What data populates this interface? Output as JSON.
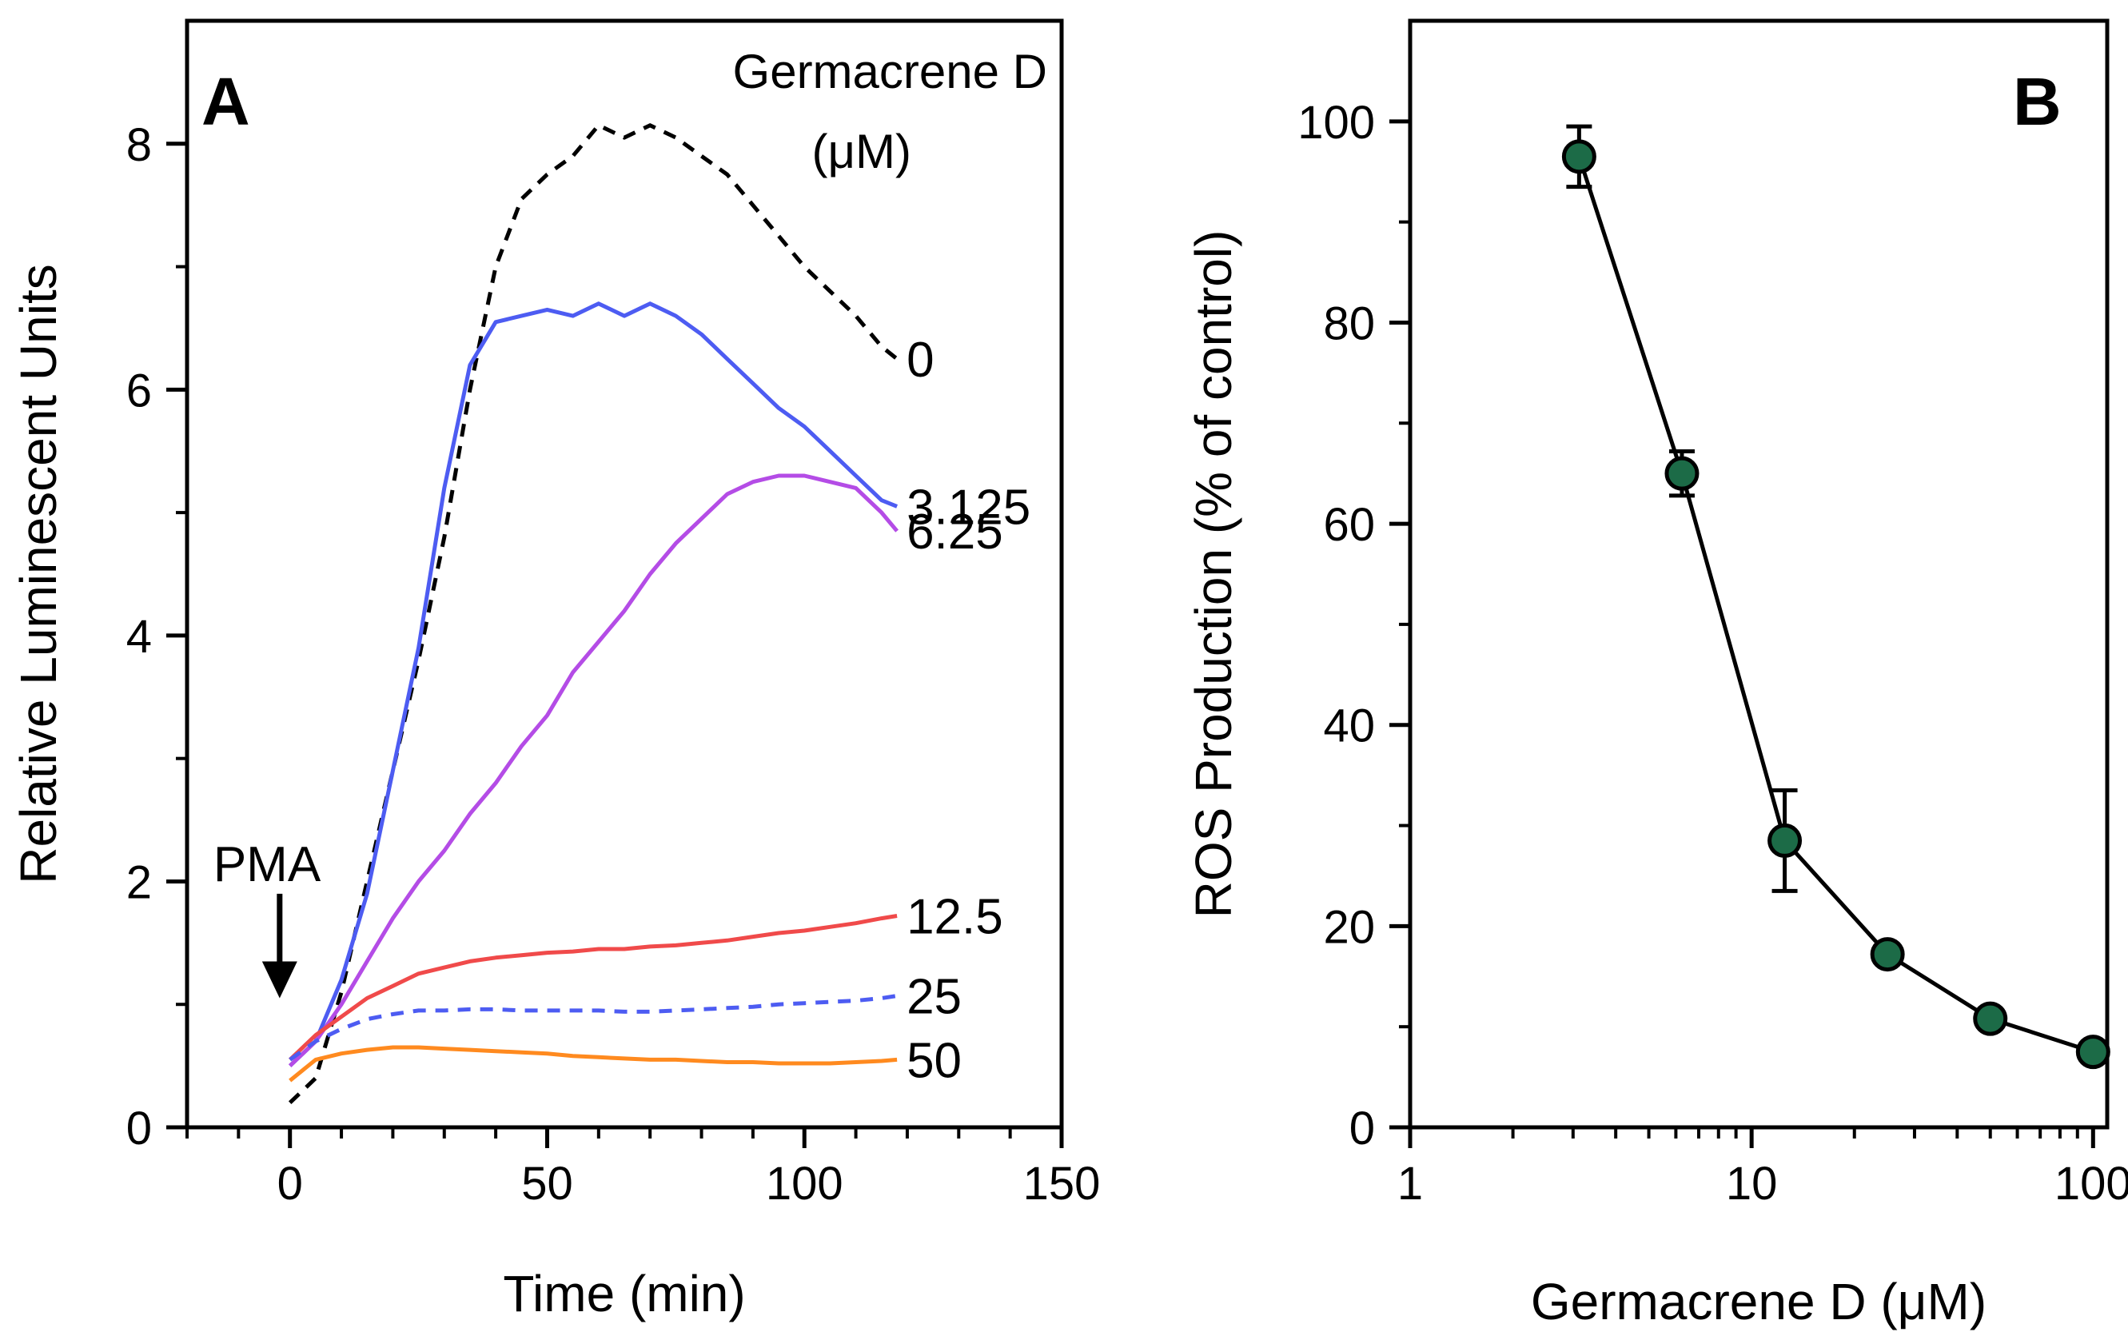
{
  "chart_data": [
    {
      "panel": "A",
      "type": "line",
      "xlabel": "Time (min)",
      "ylabel": "Relative Luminescent Units",
      "xlim": [
        -20,
        150
      ],
      "ylim": [
        0,
        9
      ],
      "x_ticks": [
        0,
        50,
        100,
        150
      ],
      "y_ticks": [
        0,
        2,
        4,
        6,
        8
      ],
      "x_minor_step": 10,
      "grid": false,
      "legend_title": [
        "Germacrene D",
        "(μM)"
      ],
      "annotation": {
        "text": "PMA",
        "x": -2,
        "arrow_from_y": 1.9,
        "arrow_to_y": 1.05
      },
      "series": [
        {
          "name": "0",
          "label": "0",
          "color": "#000000",
          "dashed": true,
          "x": [
            0,
            5,
            10,
            15,
            20,
            25,
            30,
            35,
            40,
            45,
            50,
            55,
            60,
            65,
            70,
            75,
            80,
            85,
            90,
            95,
            100,
            105,
            110,
            115,
            118
          ],
          "y": [
            0.2,
            0.4,
            1.1,
            2.0,
            2.9,
            3.8,
            4.8,
            6.0,
            7.0,
            7.55,
            7.75,
            7.9,
            8.15,
            8.05,
            8.15,
            8.05,
            7.9,
            7.75,
            7.5,
            7.25,
            7.0,
            6.8,
            6.6,
            6.35,
            6.25
          ]
        },
        {
          "name": "3.125",
          "label": "3.125",
          "color": "#4d5cf2",
          "dashed": false,
          "x": [
            0,
            5,
            10,
            15,
            20,
            25,
            30,
            35,
            40,
            45,
            50,
            55,
            60,
            65,
            70,
            75,
            80,
            85,
            90,
            95,
            100,
            105,
            110,
            115,
            118
          ],
          "y": [
            0.5,
            0.7,
            1.2,
            1.9,
            2.9,
            3.9,
            5.2,
            6.2,
            6.55,
            6.6,
            6.65,
            6.6,
            6.7,
            6.6,
            6.7,
            6.6,
            6.45,
            6.25,
            6.05,
            5.85,
            5.7,
            5.5,
            5.3,
            5.1,
            5.05
          ]
        },
        {
          "name": "6.25",
          "label": "6.25",
          "color": "#b44ce6",
          "dashed": false,
          "x": [
            0,
            5,
            10,
            15,
            20,
            25,
            30,
            35,
            40,
            45,
            50,
            55,
            60,
            65,
            70,
            75,
            80,
            85,
            90,
            95,
            100,
            105,
            110,
            115,
            118
          ],
          "y": [
            0.5,
            0.7,
            1.0,
            1.35,
            1.7,
            2.0,
            2.25,
            2.55,
            2.8,
            3.1,
            3.35,
            3.7,
            3.95,
            4.2,
            4.5,
            4.75,
            4.95,
            5.15,
            5.25,
            5.3,
            5.3,
            5.25,
            5.2,
            5.0,
            4.85
          ]
        },
        {
          "name": "12.5",
          "label": "12.5",
          "color": "#f04a4a",
          "dashed": false,
          "x": [
            0,
            5,
            10,
            15,
            20,
            25,
            30,
            35,
            40,
            45,
            50,
            55,
            60,
            65,
            70,
            75,
            80,
            85,
            90,
            95,
            100,
            105,
            110,
            115,
            118
          ],
          "y": [
            0.55,
            0.75,
            0.9,
            1.05,
            1.15,
            1.25,
            1.3,
            1.35,
            1.38,
            1.4,
            1.42,
            1.43,
            1.45,
            1.45,
            1.47,
            1.48,
            1.5,
            1.52,
            1.55,
            1.58,
            1.6,
            1.63,
            1.66,
            1.7,
            1.72
          ]
        },
        {
          "name": "25",
          "label": "25",
          "color": "#4d5cf2",
          "dashed": true,
          "x": [
            0,
            5,
            10,
            15,
            20,
            25,
            30,
            35,
            40,
            45,
            50,
            55,
            60,
            65,
            70,
            75,
            80,
            85,
            90,
            95,
            100,
            105,
            110,
            115,
            118
          ],
          "y": [
            0.55,
            0.7,
            0.8,
            0.88,
            0.92,
            0.95,
            0.95,
            0.96,
            0.96,
            0.95,
            0.95,
            0.95,
            0.95,
            0.94,
            0.94,
            0.95,
            0.96,
            0.97,
            0.98,
            1.0,
            1.01,
            1.02,
            1.03,
            1.05,
            1.07
          ]
        },
        {
          "name": "50",
          "label": "50",
          "color": "#ff8a1f",
          "dashed": false,
          "x": [
            0,
            5,
            10,
            15,
            20,
            25,
            30,
            35,
            40,
            45,
            50,
            55,
            60,
            65,
            70,
            75,
            80,
            85,
            90,
            95,
            100,
            105,
            110,
            115,
            118
          ],
          "y": [
            0.38,
            0.55,
            0.6,
            0.63,
            0.65,
            0.65,
            0.64,
            0.63,
            0.62,
            0.61,
            0.6,
            0.58,
            0.57,
            0.56,
            0.55,
            0.55,
            0.54,
            0.53,
            0.53,
            0.52,
            0.52,
            0.52,
            0.53,
            0.54,
            0.55
          ]
        }
      ]
    },
    {
      "panel": "B",
      "type": "line",
      "x_scale": "log",
      "xlabel": "Germacrene D (μM)",
      "ylabel": "ROS Production (% of control)",
      "xlim": [
        1,
        110
      ],
      "ylim": [
        0,
        110
      ],
      "x_ticks": [
        1,
        10,
        100
      ],
      "x_tick_labels": [
        "1",
        "10",
        "100"
      ],
      "y_ticks": [
        0,
        20,
        40,
        60,
        80,
        100
      ],
      "grid": false,
      "marker_color": "#1c6b47",
      "series": [
        {
          "name": "ROS",
          "x": [
            3.125,
            6.25,
            12.5,
            25,
            50,
            100
          ],
          "y": [
            96.5,
            65,
            28.5,
            17.2,
            10.8,
            7.5
          ],
          "error": [
            3.0,
            2.2,
            5.0,
            0.8,
            0.6,
            0.5
          ]
        }
      ]
    }
  ]
}
